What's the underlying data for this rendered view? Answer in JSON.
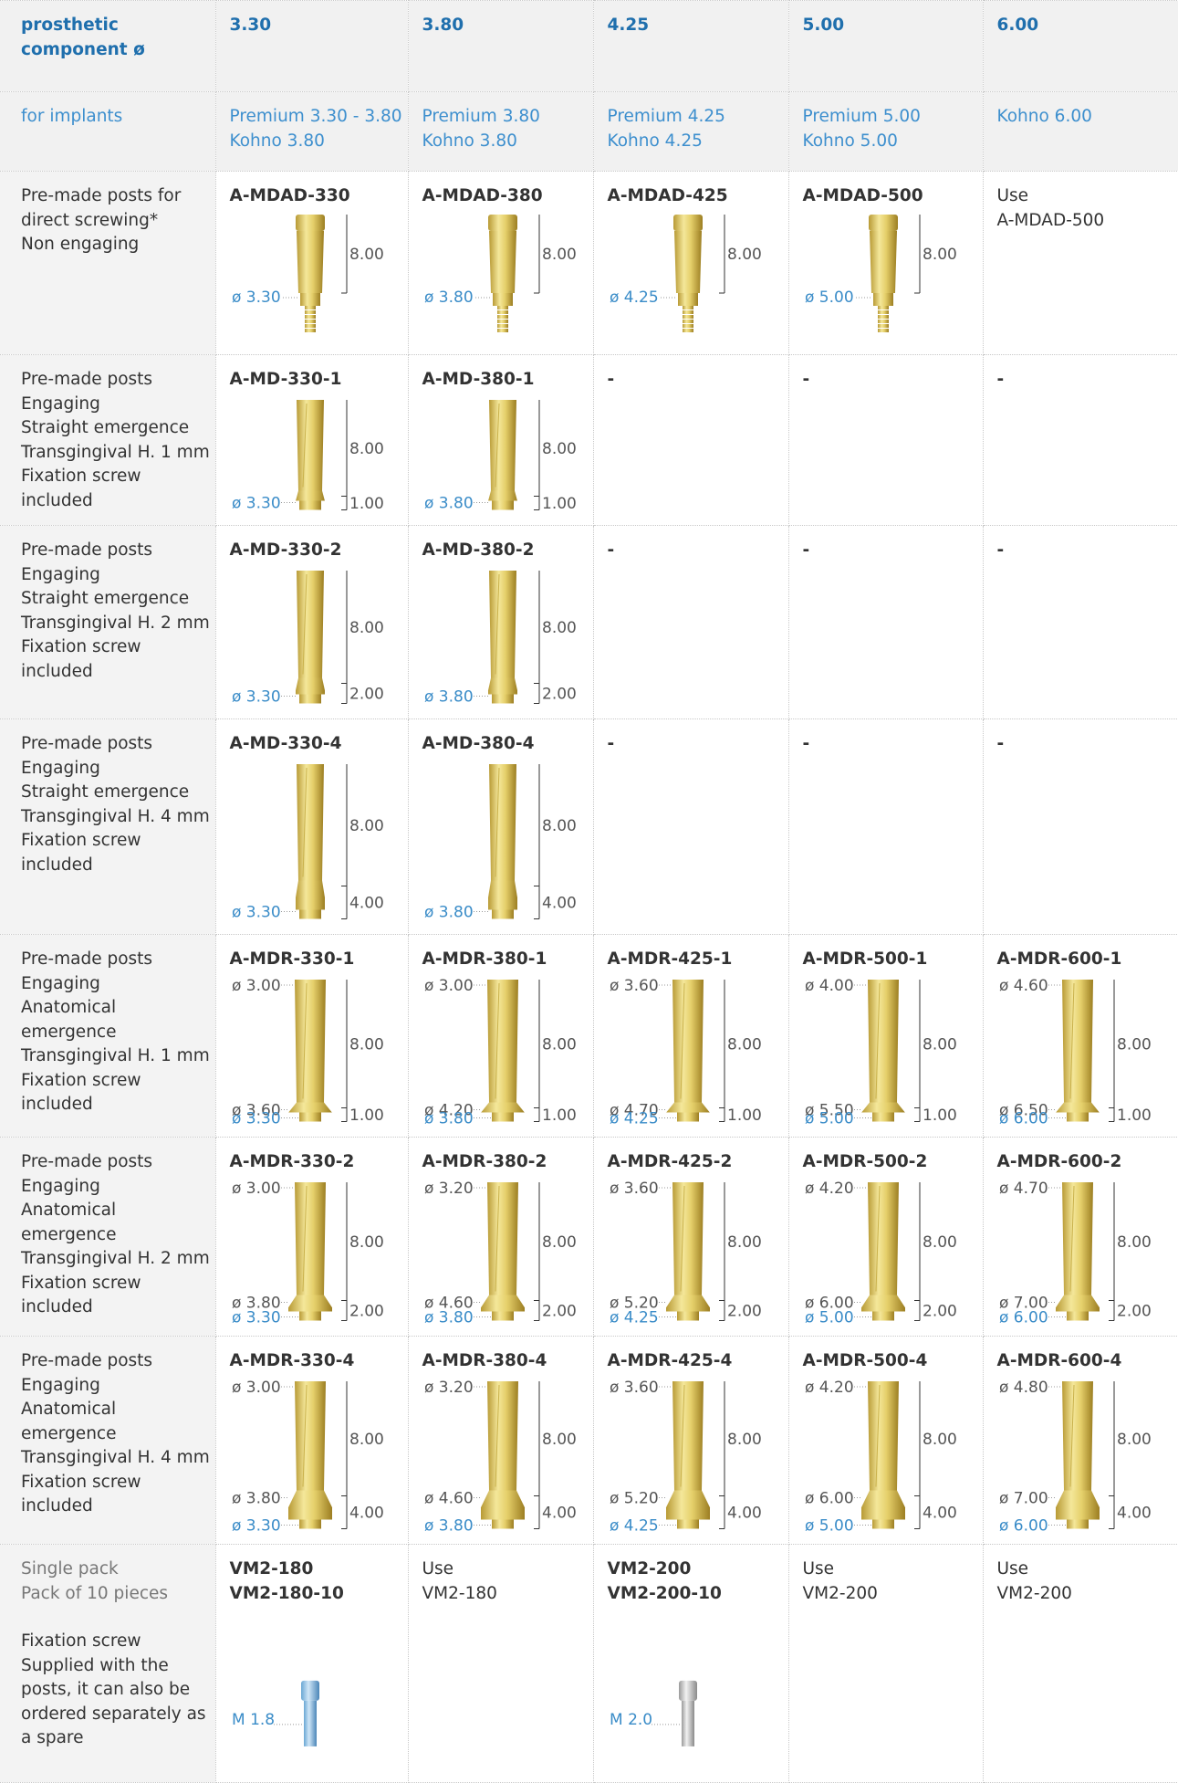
{
  "header": {
    "label": [
      "prosthetic",
      "component ø"
    ],
    "cols": [
      "3.30",
      "3.80",
      "4.25",
      "5.00",
      "6.00"
    ]
  },
  "implants": {
    "label": [
      "for implants"
    ],
    "cols": [
      [
        "Premium 3.30 - 3.80",
        "Kohno 3.80"
      ],
      [
        "Premium 3.80",
        "Kohno 3.80"
      ],
      [
        "Premium 4.25",
        "Kohno 4.25"
      ],
      [
        "Premium 5.00",
        "Kohno 5.00"
      ],
      [
        "Kohno 6.00"
      ]
    ]
  },
  "rows": [
    {
      "label": [
        "Pre-made posts for",
        "direct screwing*",
        "Non engaging"
      ],
      "cells": [
        {
          "code": [
            "A-MDAD-330"
          ],
          "fig": {
            "d": [
              "ø 3.30"
            ],
            "h": [
              "8.00"
            ]
          }
        },
        {
          "code": [
            "A-MDAD-380"
          ],
          "fig": {
            "d": [
              "ø 3.80"
            ],
            "h": [
              "8.00"
            ]
          }
        },
        {
          "code": [
            "A-MDAD-425"
          ],
          "fig": {
            "d": [
              "ø 4.25"
            ],
            "h": [
              "8.00"
            ]
          }
        },
        {
          "code": [
            "A-MDAD-500"
          ],
          "fig": {
            "d": [
              "ø 5.00"
            ],
            "h": [
              "8.00"
            ]
          }
        },
        {
          "text": [
            "Use",
            "A-MDAD-500"
          ]
        }
      ]
    },
    {
      "label": [
        "Pre-made posts",
        "Engaging",
        "Straight emergence",
        "Transgingival H. 1 mm",
        "Fixation screw",
        "included"
      ],
      "cells": [
        {
          "code": [
            "A-MD-330-1"
          ],
          "fig": {
            "d": [
              "ø 3.30"
            ],
            "h": [
              "8.00",
              "1.00"
            ]
          }
        },
        {
          "code": [
            "A-MD-380-1"
          ],
          "fig": {
            "d": [
              "ø 3.80"
            ],
            "h": [
              "8.00",
              "1.00"
            ]
          }
        },
        {
          "code": [
            "-"
          ]
        },
        {
          "code": [
            "-"
          ]
        },
        {
          "code": [
            "-"
          ]
        }
      ]
    },
    {
      "label": [
        "Pre-made posts",
        "Engaging",
        "Straight emergence",
        "Transgingival H. 2 mm",
        "Fixation screw",
        "included"
      ],
      "cells": [
        {
          "code": [
            "A-MD-330-2"
          ],
          "fig": {
            "d": [
              "ø 3.30"
            ],
            "h": [
              "8.00",
              "2.00"
            ]
          }
        },
        {
          "code": [
            "A-MD-380-2"
          ],
          "fig": {
            "d": [
              "ø 3.80"
            ],
            "h": [
              "8.00",
              "2.00"
            ]
          }
        },
        {
          "code": [
            "-"
          ]
        },
        {
          "code": [
            "-"
          ]
        },
        {
          "code": [
            "-"
          ]
        }
      ]
    },
    {
      "label": [
        "Pre-made posts",
        "Engaging",
        "Straight emergence",
        "Transgingival H. 4 mm",
        "Fixation screw",
        "included"
      ],
      "cells": [
        {
          "code": [
            "A-MD-330-4"
          ],
          "fig": {
            "d": [
              "ø 3.30"
            ],
            "h": [
              "8.00",
              "4.00"
            ]
          }
        },
        {
          "code": [
            "A-MD-380-4"
          ],
          "fig": {
            "d": [
              "ø 3.80"
            ],
            "h": [
              "8.00",
              "4.00"
            ]
          }
        },
        {
          "code": [
            "-"
          ]
        },
        {
          "code": [
            "-"
          ]
        },
        {
          "code": [
            "-"
          ]
        }
      ]
    },
    {
      "label": [
        "Pre-made posts",
        "Engaging",
        "Anatomical",
        "emergence",
        "Transgingival H. 1 mm",
        "Fixation screw",
        "included"
      ],
      "cells": [
        {
          "code": [
            "A-MDR-330-1"
          ],
          "fig": {
            "d": [
              "ø 3.00",
              "ø 3.60",
              "ø 3.30"
            ],
            "h": [
              "8.00",
              "1.00"
            ]
          }
        },
        {
          "code": [
            "A-MDR-380-1"
          ],
          "fig": {
            "d": [
              "ø 3.00",
              "ø 4.20",
              "ø 3.80"
            ],
            "h": [
              "8.00",
              "1.00"
            ]
          }
        },
        {
          "code": [
            "A-MDR-425-1"
          ],
          "fig": {
            "d": [
              "ø 3.60",
              "ø 4.70",
              "ø 4.25"
            ],
            "h": [
              "8.00",
              "1.00"
            ]
          }
        },
        {
          "code": [
            "A-MDR-500-1"
          ],
          "fig": {
            "d": [
              "ø 4.00",
              "ø 5.50",
              "ø 5.00"
            ],
            "h": [
              "8.00",
              "1.00"
            ]
          }
        },
        {
          "code": [
            "A-MDR-600-1"
          ],
          "fig": {
            "d": [
              "ø 4.60",
              "ø 6.50",
              "ø 6.00"
            ],
            "h": [
              "8.00",
              "1.00"
            ]
          }
        }
      ]
    },
    {
      "label": [
        "Pre-made posts",
        "Engaging",
        "Anatomical",
        "emergence",
        "Transgingival H. 2 mm",
        "Fixation screw",
        "included"
      ],
      "cells": [
        {
          "code": [
            "A-MDR-330-2"
          ],
          "fig": {
            "d": [
              "ø 3.00",
              "ø 3.80",
              "ø 3.30"
            ],
            "h": [
              "8.00",
              "2.00"
            ]
          }
        },
        {
          "code": [
            "A-MDR-380-2"
          ],
          "fig": {
            "d": [
              "ø 3.20",
              "ø 4.60",
              "ø 3.80"
            ],
            "h": [
              "8.00",
              "2.00"
            ]
          }
        },
        {
          "code": [
            "A-MDR-425-2"
          ],
          "fig": {
            "d": [
              "ø 3.60",
              "ø 5.20",
              "ø 4.25"
            ],
            "h": [
              "8.00",
              "2.00"
            ]
          }
        },
        {
          "code": [
            "A-MDR-500-2"
          ],
          "fig": {
            "d": [
              "ø 4.20",
              "ø 6.00",
              "ø 5.00"
            ],
            "h": [
              "8.00",
              "2.00"
            ]
          }
        },
        {
          "code": [
            "A-MDR-600-2"
          ],
          "fig": {
            "d": [
              "ø 4.70",
              "ø 7.00",
              "ø 6.00"
            ],
            "h": [
              "8.00",
              "2.00"
            ]
          }
        }
      ]
    },
    {
      "label": [
        "Pre-made posts",
        "Engaging",
        "Anatomical",
        "emergence",
        "Transgingival H. 4 mm",
        "Fixation screw",
        "included"
      ],
      "cells": [
        {
          "code": [
            "A-MDR-330-4"
          ],
          "fig": {
            "d": [
              "ø 3.00",
              "ø 3.80",
              "ø 3.30"
            ],
            "h": [
              "8.00",
              "4.00"
            ]
          }
        },
        {
          "code": [
            "A-MDR-380-4"
          ],
          "fig": {
            "d": [
              "ø 3.20",
              "ø 4.60",
              "ø 3.80"
            ],
            "h": [
              "8.00",
              "4.00"
            ]
          }
        },
        {
          "code": [
            "A-MDR-425-4"
          ],
          "fig": {
            "d": [
              "ø 3.60",
              "ø 5.20",
              "ø 4.25"
            ],
            "h": [
              "8.00",
              "4.00"
            ]
          }
        },
        {
          "code": [
            "A-MDR-500-4"
          ],
          "fig": {
            "d": [
              "ø 4.20",
              "ø 6.00",
              "ø 5.00"
            ],
            "h": [
              "8.00",
              "4.00"
            ]
          }
        },
        {
          "code": [
            "A-MDR-600-4"
          ],
          "fig": {
            "d": [
              "ø 4.80",
              "ø 7.00",
              "ø 6.00"
            ],
            "h": [
              "8.00",
              "4.00"
            ]
          }
        }
      ]
    },
    {
      "sublabel": [
        "Single pack",
        "Pack of 10 pieces"
      ],
      "label": [
        "Fixation screw",
        "Supplied with the",
        "posts, it can also be",
        "ordered separately as",
        "a spare"
      ],
      "cells": [
        {
          "code": [
            "VM2-180",
            "VM2-180-10"
          ],
          "fig": {
            "d": [
              "M 1.8"
            ],
            "h": []
          }
        },
        {
          "text": [
            "Use",
            "VM2-180"
          ]
        },
        {
          "code": [
            "VM2-200",
            "VM2-200-10"
          ],
          "fig": {
            "d": [
              "M 2.0"
            ],
            "h": []
          }
        },
        {
          "text": [
            "Use",
            "VM2-200"
          ]
        },
        {
          "text": [
            "Use",
            "VM2-200"
          ]
        }
      ]
    }
  ]
}
